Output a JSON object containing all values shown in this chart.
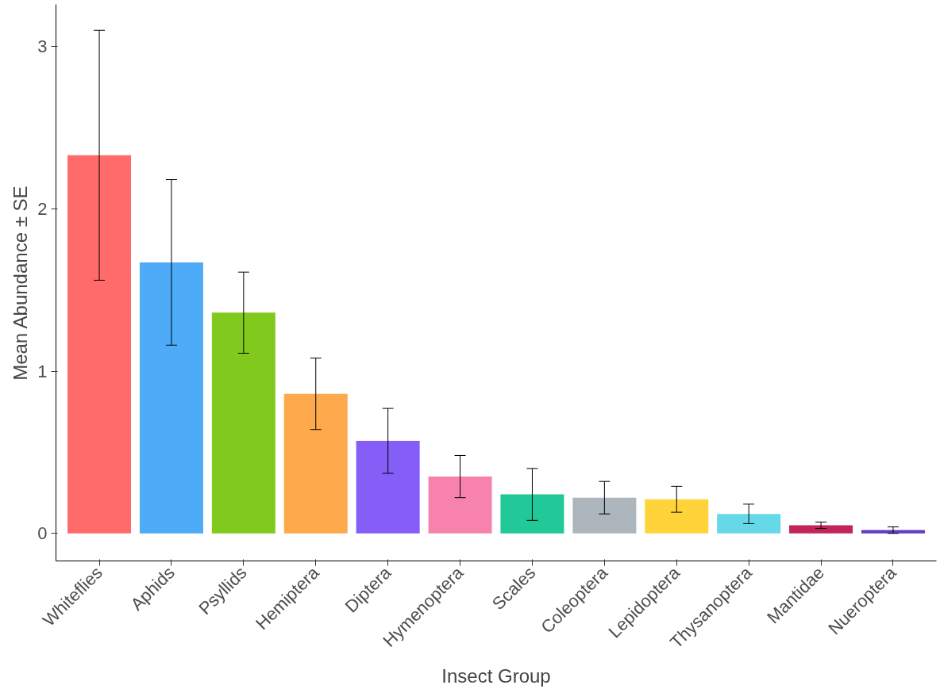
{
  "chart_data": {
    "type": "bar",
    "xlabel": "Insect Group",
    "ylabel": "Mean Abundance ± SE",
    "categories": [
      "Whiteflies",
      "Aphids",
      "Psyllids",
      "Hemiptera",
      "Diptera",
      "Hymenoptera",
      "Scales",
      "Coleoptera",
      "Lepidoptera",
      "Thysanoptera",
      "Mantidae",
      "Nueroptera"
    ],
    "values": [
      2.33,
      1.67,
      1.36,
      0.86,
      0.57,
      0.35,
      0.24,
      0.22,
      0.21,
      0.12,
      0.05,
      0.02
    ],
    "errors": [
      0.77,
      0.51,
      0.25,
      0.22,
      0.2,
      0.13,
      0.16,
      0.1,
      0.08,
      0.06,
      0.02,
      0.02
    ],
    "colors": [
      "#ff6b6b",
      "#4dabf7",
      "#82c91e",
      "#ffa94d",
      "#845ef7",
      "#f783ac",
      "#20c997",
      "#adb5bd",
      "#ffd43b",
      "#66d9e8",
      "#c2255c",
      "#5f3dc4"
    ],
    "ylim": [
      -0.17,
      3.26
    ],
    "yticks": [
      0,
      1,
      2,
      3
    ],
    "grid": false
  }
}
